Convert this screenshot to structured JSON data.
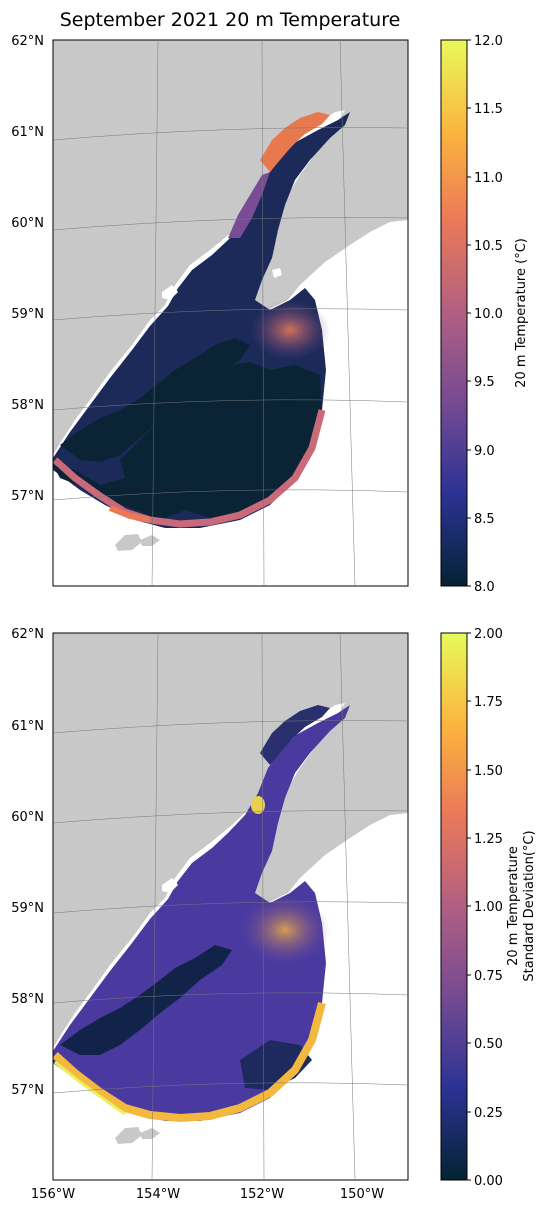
{
  "figure": {
    "title": "September 2021 20 m Temperature"
  },
  "map": {
    "lat_labels": [
      "62°N",
      "61°N",
      "60°N",
      "59°N",
      "58°N",
      "57°N"
    ],
    "lon_labels": [
      "156°W",
      "154°W",
      "152°W",
      "150°W"
    ],
    "lon_range": [
      -156,
      -149
    ],
    "lat_range": [
      56,
      62
    ],
    "land_color": "#c8c8c8",
    "ocean_color": "#ffffff"
  },
  "panels": [
    {
      "variable": "20 m Temperature",
      "colorbar_label": "20 m Temperature (°C)",
      "colorbar_ticks": [
        "12.0",
        "11.5",
        "11.0",
        "10.5",
        "10.0",
        "9.5",
        "9.0",
        "8.5",
        "8.0"
      ],
      "range": [
        8.0,
        12.0
      ]
    },
    {
      "variable": "20 m Temperature Standard Deviation",
      "colorbar_label_lines": [
        "20 m Temperature",
        "Standard Deviation(°C)"
      ],
      "colorbar_ticks": [
        "2.00",
        "1.75",
        "1.50",
        "1.25",
        "1.00",
        "0.75",
        "0.50",
        "0.25",
        "0.00"
      ],
      "range": [
        0.0,
        2.0
      ]
    }
  ],
  "colormap": {
    "name": "thermal",
    "stops": [
      "#042333",
      "#2c3395",
      "#744992",
      "#b15f82",
      "#eb7958",
      "#fbb43d",
      "#e8fa5b"
    ]
  }
}
